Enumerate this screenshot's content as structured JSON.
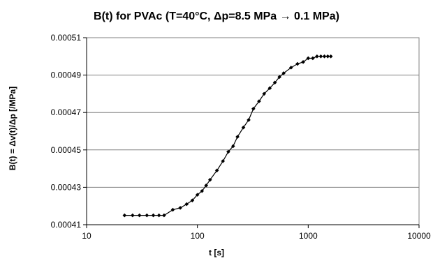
{
  "chart_data": {
    "type": "scatter",
    "title": "B(t) for PVAc (T=40°C, Δp=8.5 MPa → 0.1 MPa)",
    "xlabel": "t [s]",
    "ylabel": "B(t) = Δv(t)/Δp [/MPa]",
    "x_scale": "log",
    "xlim": [
      10,
      10000
    ],
    "ylim": [
      0.00041,
      0.00051
    ],
    "x_ticks": [
      10,
      100,
      1000,
      10000
    ],
    "x_tick_labels": [
      "10",
      "100",
      "1000",
      "10000"
    ],
    "y_ticks": [
      0.00041,
      0.00043,
      0.00045,
      0.00047,
      0.00049,
      0.00051
    ],
    "y_tick_labels": [
      "0.00041",
      "0.00043",
      "0.00045",
      "0.00047",
      "0.00049",
      "0.00051"
    ],
    "grid": "horizontal",
    "legend": "none",
    "line_color": "#000000",
    "marker": "diamond",
    "series": [
      {
        "x": [
          22,
          26,
          30,
          35,
          40,
          45,
          50,
          60,
          70,
          80,
          90,
          100,
          110,
          120,
          130,
          150,
          170,
          190,
          210,
          230,
          260,
          290,
          320,
          360,
          400,
          450,
          500,
          550,
          600,
          700,
          800,
          900,
          1000,
          1100,
          1200,
          1300,
          1400,
          1500,
          1600
        ],
        "y": [
          0.000415,
          0.000415,
          0.000415,
          0.000415,
          0.000415,
          0.000415,
          0.000415,
          0.000418,
          0.000419,
          0.000421,
          0.000423,
          0.000426,
          0.000428,
          0.000431,
          0.000434,
          0.000439,
          0.000444,
          0.000449,
          0.000452,
          0.000457,
          0.000462,
          0.000466,
          0.000472,
          0.000476,
          0.00048,
          0.000483,
          0.000486,
          0.000489,
          0.000491,
          0.000494,
          0.000496,
          0.000497,
          0.000499,
          0.000499,
          0.0005,
          0.0005,
          0.0005,
          0.0005,
          0.0005
        ]
      }
    ]
  }
}
